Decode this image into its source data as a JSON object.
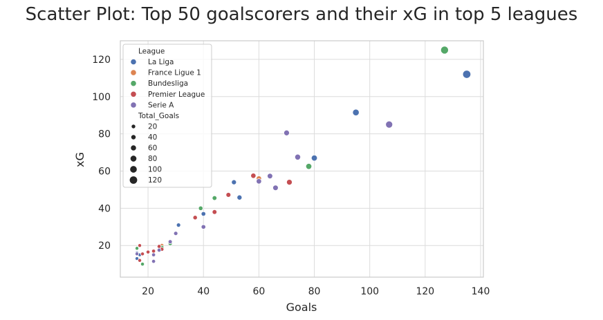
{
  "chart_data": {
    "type": "scatter",
    "title": "Scatter Plot: Top 50 goalscorers and their xG in top 5 leagues",
    "xlabel": "Goals",
    "ylabel": "xG",
    "xlim": [
      10,
      141
    ],
    "ylim": [
      3,
      130
    ],
    "x_ticks": [
      20,
      40,
      60,
      80,
      100,
      120,
      140
    ],
    "y_ticks": [
      20,
      40,
      60,
      80,
      100,
      120
    ],
    "grid": true,
    "legend_placement": "top-left",
    "hue_title": "League",
    "size_title": "Total_Goals",
    "size_legend": [
      20,
      40,
      60,
      80,
      100,
      120
    ],
    "series": [
      {
        "name": "La Liga",
        "color": "#4c72b0",
        "points": [
          [
            135,
            112
          ],
          [
            95,
            91.5
          ],
          [
            80,
            67
          ],
          [
            51,
            54
          ],
          [
            53,
            45.8
          ],
          [
            40,
            37
          ],
          [
            31,
            31
          ],
          [
            16,
            16
          ],
          [
            16,
            13
          ],
          [
            17,
            15
          ]
        ]
      },
      {
        "name": "France Ligue 1",
        "color": "#dd8452",
        "points": [
          [
            60,
            56
          ],
          [
            28,
            22
          ],
          [
            25,
            20
          ]
        ]
      },
      {
        "name": "Bundesliga",
        "color": "#55a868",
        "points": [
          [
            127,
            125
          ],
          [
            78,
            62.5
          ],
          [
            44,
            45.5
          ],
          [
            39,
            40
          ],
          [
            28,
            21
          ],
          [
            25,
            19
          ],
          [
            16,
            18.5
          ],
          [
            18,
            10
          ]
        ]
      },
      {
        "name": "Premier League",
        "color": "#c44e52",
        "points": [
          [
            58,
            57.5
          ],
          [
            71,
            54
          ],
          [
            49,
            47.2
          ],
          [
            44,
            38
          ],
          [
            37,
            35
          ],
          [
            24,
            19.5
          ],
          [
            25,
            18
          ],
          [
            22,
            17
          ],
          [
            20,
            16.5
          ],
          [
            17,
            20
          ],
          [
            18,
            15.5
          ],
          [
            17,
            12
          ]
        ]
      },
      {
        "name": "Serie A",
        "color": "#8172b3",
        "points": [
          [
            107,
            85
          ],
          [
            70,
            80.5
          ],
          [
            74,
            67.5
          ],
          [
            64,
            57.3
          ],
          [
            60,
            54.5
          ],
          [
            66,
            51
          ],
          [
            40,
            30
          ],
          [
            30,
            26.5
          ],
          [
            28,
            22
          ],
          [
            24,
            17.5
          ],
          [
            22,
            15
          ],
          [
            22,
            11.5
          ],
          [
            16,
            15.5
          ]
        ]
      }
    ]
  }
}
